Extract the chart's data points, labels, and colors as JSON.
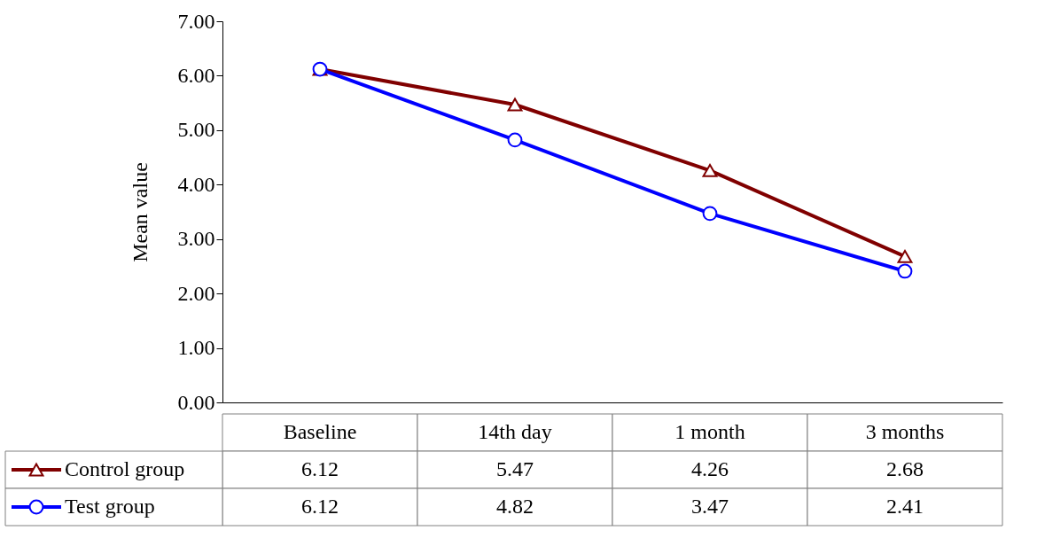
{
  "chart_data": {
    "type": "line",
    "ylabel": "Mean value",
    "categories": [
      "Baseline",
      "14th day",
      "1 month",
      "3 months"
    ],
    "series": [
      {
        "name": "Control group",
        "color": "#800000",
        "marker": "triangle",
        "values": [
          6.12,
          5.47,
          4.26,
          2.68
        ]
      },
      {
        "name": "Test group",
        "color": "#0000ff",
        "marker": "circle",
        "values": [
          6.12,
          4.82,
          3.47,
          2.41
        ]
      }
    ],
    "ylim": [
      0,
      7
    ],
    "yticks": [
      {
        "value": 0,
        "label": "0.00"
      },
      {
        "value": 1,
        "label": "1.00"
      },
      {
        "value": 2,
        "label": "2.00"
      },
      {
        "value": 3,
        "label": "3.00"
      },
      {
        "value": 4,
        "label": "4.00"
      },
      {
        "value": 5,
        "label": "5.00"
      },
      {
        "value": 6,
        "label": "6.00"
      },
      {
        "value": 7,
        "label": "7.00"
      }
    ],
    "grid": false,
    "legend": "bottom left",
    "data_labels": true
  }
}
